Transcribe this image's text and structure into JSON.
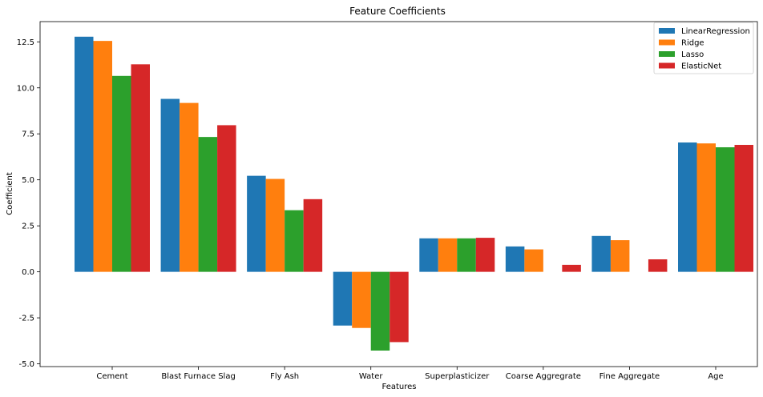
{
  "chart_data": {
    "type": "bar",
    "title": "Feature Coefficients",
    "xlabel": "Features",
    "ylabel": "Coefficient",
    "categories": [
      "Cement",
      "Blast Furnace Slag",
      "Fly Ash",
      "Water",
      "Superplasticizer",
      "Coarse Aggregrate",
      "Fine Aggregate",
      "Age"
    ],
    "series": [
      {
        "name": "LinearRegression",
        "color": "#1f77b4",
        "values": [
          12.78,
          9.4,
          5.22,
          -2.92,
          1.82,
          1.38,
          1.95,
          7.03
        ]
      },
      {
        "name": "Ridge",
        "color": "#ff7f0e",
        "values": [
          12.55,
          9.18,
          5.05,
          -3.05,
          1.82,
          1.22,
          1.72,
          6.98
        ]
      },
      {
        "name": "Lasso",
        "color": "#2ca02c",
        "values": [
          10.65,
          7.33,
          3.35,
          -4.28,
          1.82,
          0.0,
          0.0,
          6.77
        ]
      },
      {
        "name": "ElasticNet",
        "color": "#d62728",
        "values": [
          11.28,
          7.97,
          3.95,
          -3.82,
          1.85,
          0.38,
          0.68,
          6.9
        ]
      }
    ],
    "ylim": [
      -5.15,
      13.6
    ],
    "yticks": [
      "-5.0",
      "-2.5",
      "0.0",
      "2.5",
      "5.0",
      "7.5",
      "10.0",
      "12.5"
    ],
    "grid": false,
    "legend": "top-right"
  }
}
